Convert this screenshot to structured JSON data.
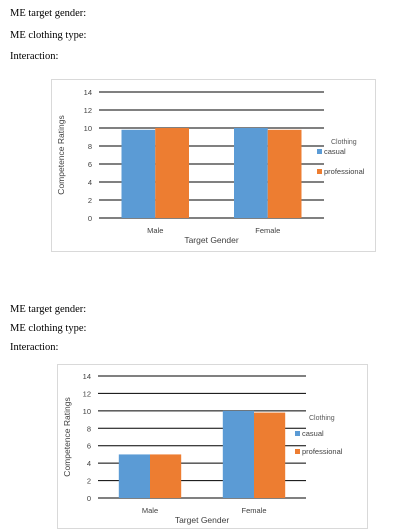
{
  "sections": [
    {
      "lines": [
        "ME target gender:",
        "ME clothing type:",
        "Interaction:"
      ]
    },
    {
      "lines": [
        "ME target gender:",
        "ME clothing type:",
        "Interaction:"
      ]
    }
  ],
  "colors": {
    "casual": "#5b9bd5",
    "professional": "#ed7d31",
    "axis": "#000000",
    "text": "#404040"
  },
  "chart_data": [
    {
      "type": "bar",
      "categories": [
        "Male",
        "Female"
      ],
      "series": [
        {
          "name": "casual",
          "values": [
            9.8,
            10.0
          ]
        },
        {
          "name": "professional",
          "values": [
            10.0,
            9.8
          ]
        }
      ],
      "title": "",
      "xlabel": "Target Gender",
      "ylabel": "Competence Ratings",
      "ylim": [
        0,
        14
      ],
      "yticks": [
        0,
        2,
        4,
        6,
        8,
        10,
        12,
        14
      ],
      "grid": true,
      "legend": {
        "title": "Clothing",
        "placement": "right"
      }
    },
    {
      "type": "bar",
      "categories": [
        "Male",
        "Female"
      ],
      "series": [
        {
          "name": "casual",
          "values": [
            5.0,
            10.0
          ]
        },
        {
          "name": "professional",
          "values": [
            5.0,
            9.8
          ]
        }
      ],
      "title": "",
      "xlabel": "Target Gender",
      "ylabel": "Competence Ratings",
      "ylim": [
        0,
        14
      ],
      "yticks": [
        0,
        2,
        4,
        6,
        8,
        10,
        12,
        14
      ],
      "grid": true,
      "legend": {
        "title": "Clothing",
        "placement": "right"
      }
    }
  ]
}
